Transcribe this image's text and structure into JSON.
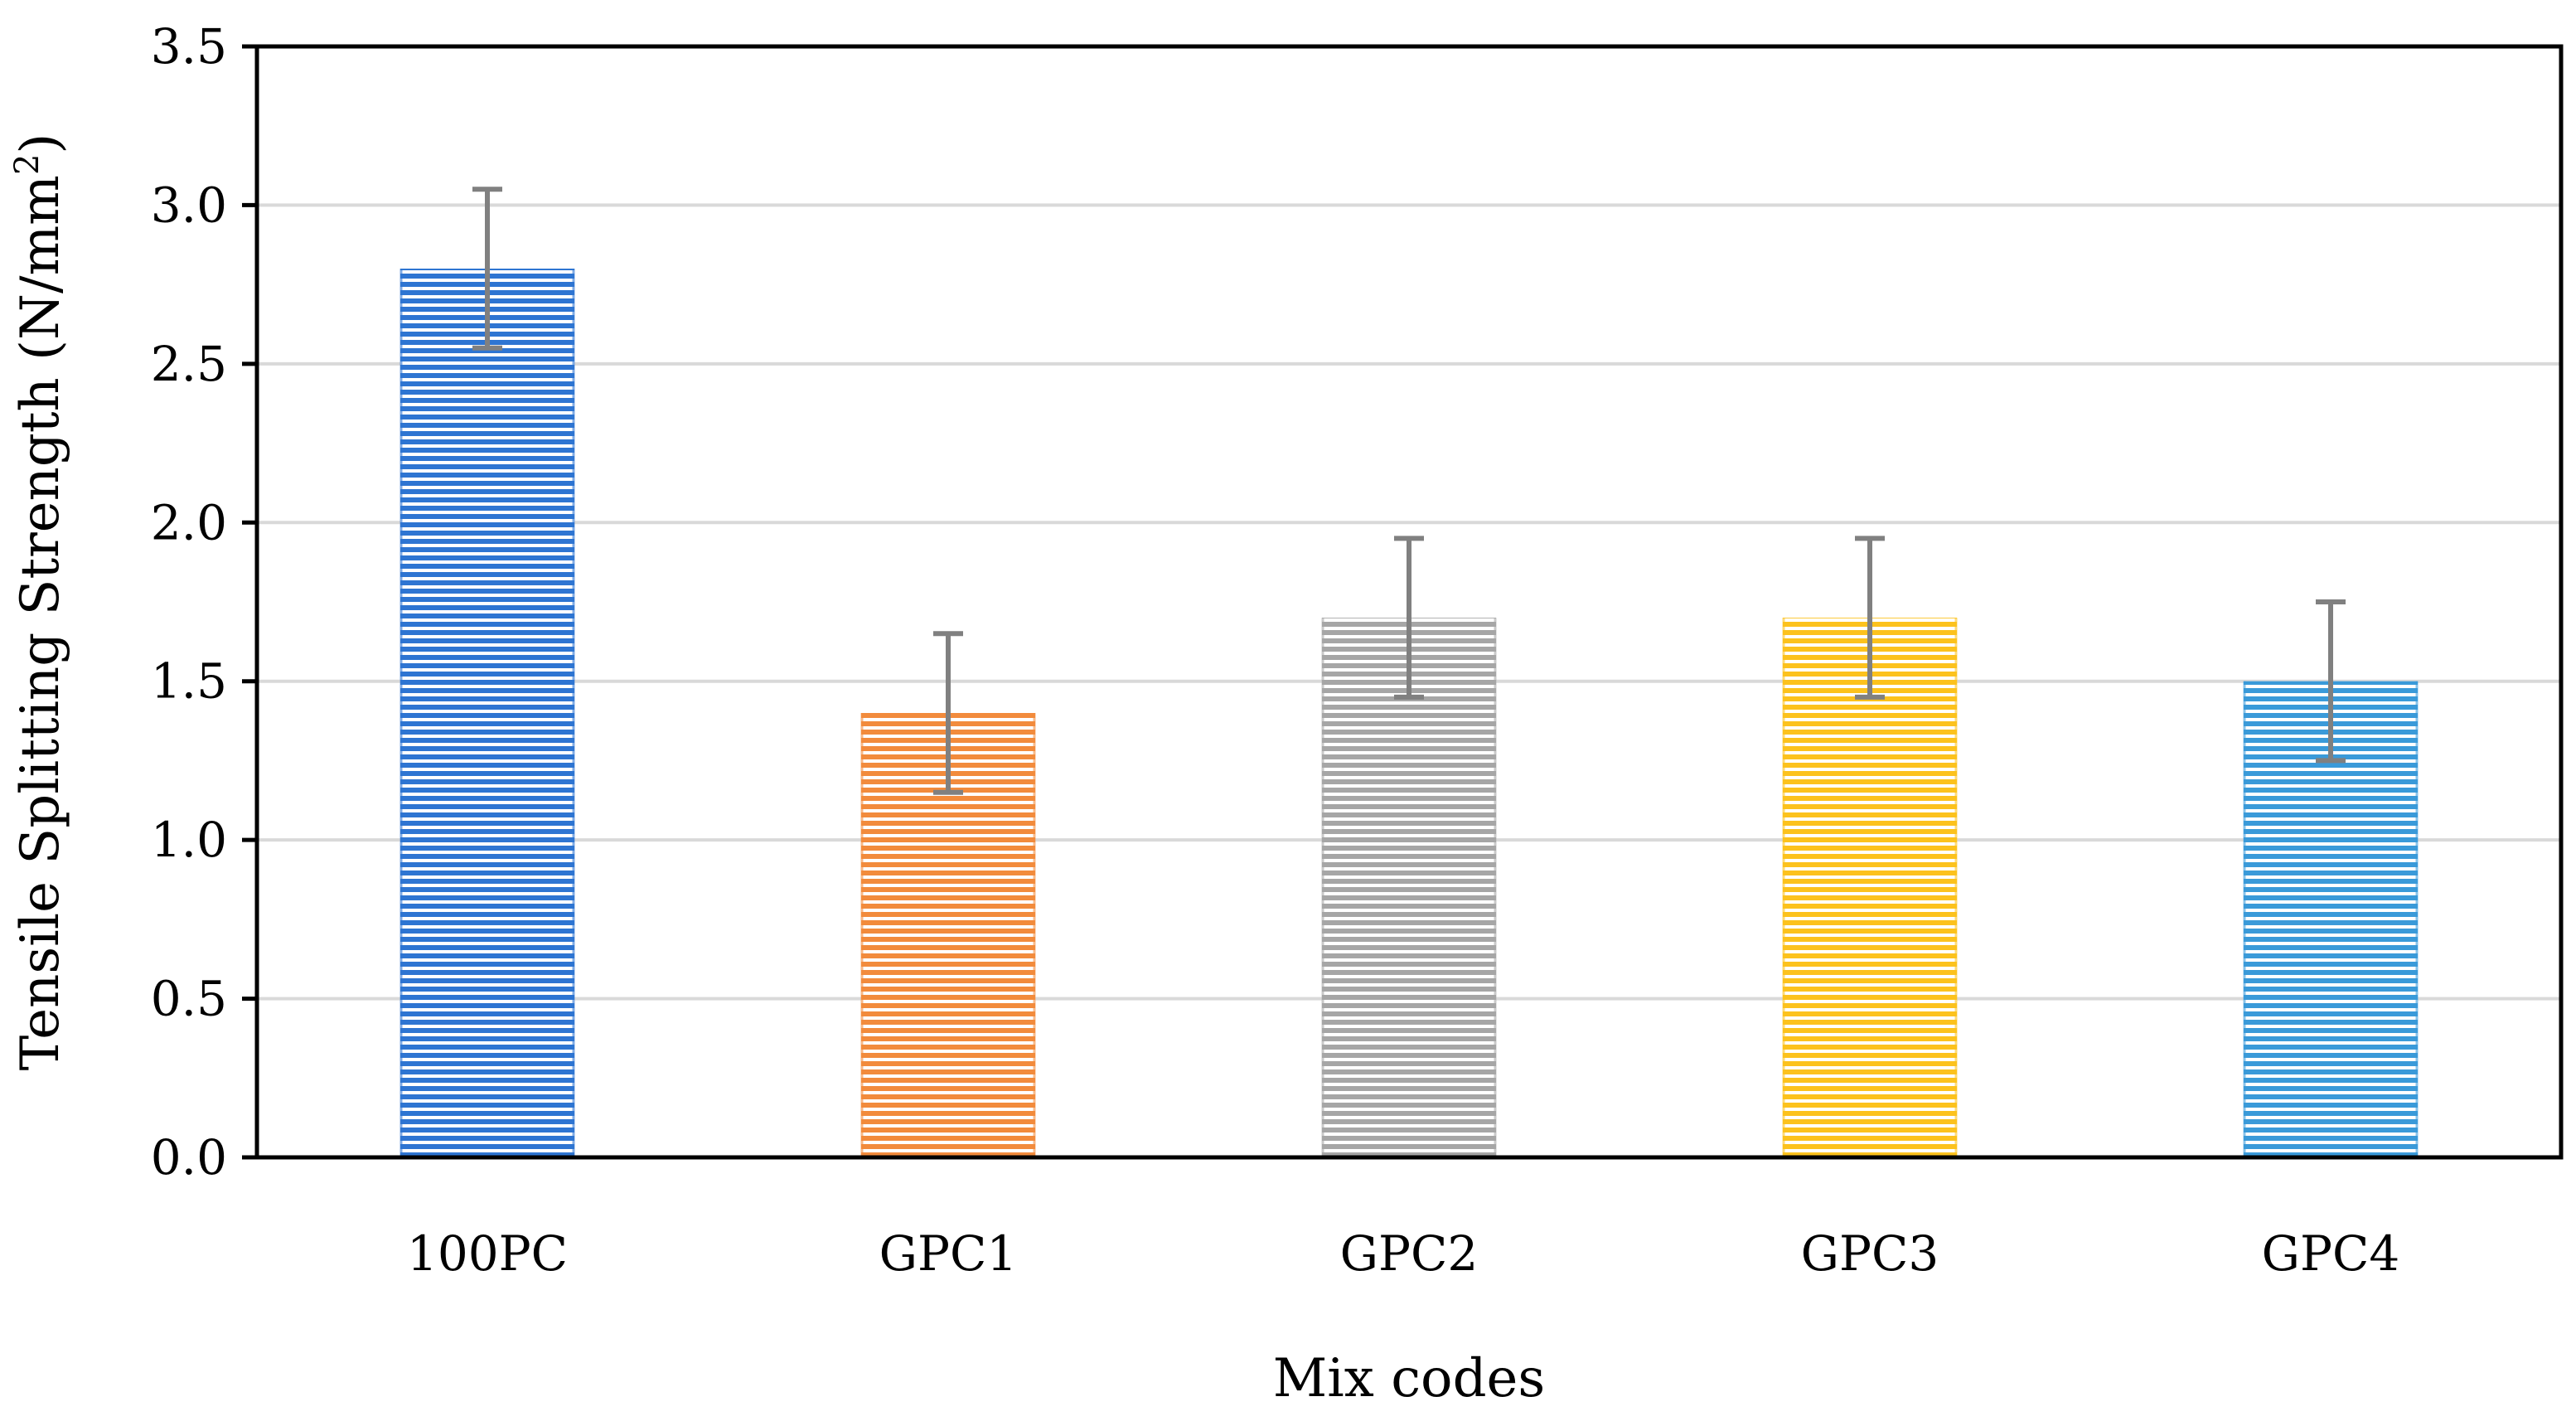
{
  "chart_data": {
    "type": "bar",
    "title": "",
    "xlabel": "Mix codes",
    "ylabel": "Tensile Splitting Strength (N/mm²)",
    "ylabel_base": "Tensile Splitting Strength (N/mm",
    "ylabel_sup": "2",
    "ylabel_end": ")",
    "categories": [
      "100PC",
      "GPC1",
      "GPC2",
      "GPC3",
      "GPC4"
    ],
    "values": [
      2.8,
      1.4,
      1.7,
      1.7,
      1.5
    ],
    "error_bars": [
      0.25,
      0.25,
      0.25,
      0.25,
      0.25
    ],
    "ylim": [
      0,
      3.5
    ],
    "yticks": [
      0.0,
      0.5,
      1.0,
      1.5,
      2.0,
      2.5,
      3.0,
      3.5
    ],
    "ytick_labels": [
      "0.0",
      "0.5",
      "1.0",
      "1.5",
      "2.0",
      "2.5",
      "3.0",
      "3.5"
    ],
    "grid": true,
    "legend": "none",
    "bar_pattern": "horizontal-stripes",
    "bar_colors": [
      "#2e75d2",
      "#f28b3c",
      "#a6a6a6",
      "#fcc21d",
      "#3a9ad9"
    ],
    "error_bar_color": "#808080",
    "grid_color": "#d9d9d9",
    "axis_color": "#000000"
  }
}
